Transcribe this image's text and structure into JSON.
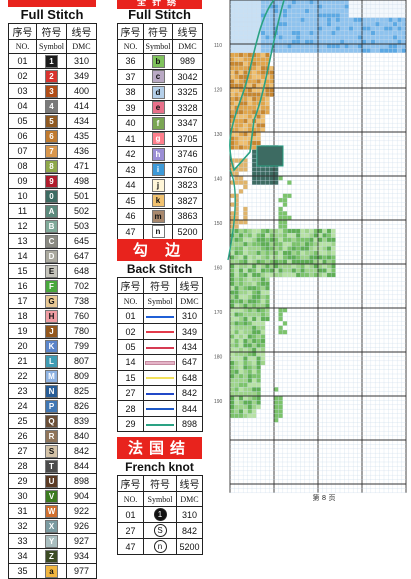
{
  "full_stitch_a": {
    "title": "Full Stitch",
    "head_zh": [
      "序号",
      "符号",
      "线号"
    ],
    "head_en": [
      "NO.",
      "Symbol",
      "DMC"
    ],
    "rows": [
      {
        "no": "01",
        "sym": "1",
        "dmc": "310",
        "color": "#1b1b1b",
        "fg": "#ffffff"
      },
      {
        "no": "02",
        "sym": "2",
        "dmc": "349",
        "color": "#d8322e",
        "fg": "#ffffff"
      },
      {
        "no": "03",
        "sym": "3",
        "dmc": "400",
        "color": "#b14d17",
        "fg": "#ffffff"
      },
      {
        "no": "04",
        "sym": "4",
        "dmc": "414",
        "color": "#7a7a7a",
        "fg": "#ffffff"
      },
      {
        "no": "05",
        "sym": "5",
        "dmc": "434",
        "color": "#8f5a22",
        "fg": "#ffffff"
      },
      {
        "no": "06",
        "sym": "6",
        "dmc": "435",
        "color": "#c07a2e",
        "fg": "#ffffff"
      },
      {
        "no": "07",
        "sym": "7",
        "dmc": "436",
        "color": "#d9974d",
        "fg": "#ffffff"
      },
      {
        "no": "08",
        "sym": "8",
        "dmc": "471",
        "color": "#8ea84a",
        "fg": "#ffffff"
      },
      {
        "no": "09",
        "sym": "9",
        "dmc": "498",
        "color": "#b01c2c",
        "fg": "#ffffff"
      },
      {
        "no": "10",
        "sym": "0",
        "dmc": "501",
        "color": "#3d6b62",
        "fg": "#ffffff"
      },
      {
        "no": "11",
        "sym": "A",
        "dmc": "502",
        "color": "#5b8a7c",
        "fg": "#ffffff"
      },
      {
        "no": "12",
        "sym": "B",
        "dmc": "503",
        "color": "#7fa999",
        "fg": "#ffffff"
      },
      {
        "no": "13",
        "sym": "C",
        "dmc": "645",
        "color": "#8a8a82",
        "fg": "#ffffff"
      },
      {
        "no": "14",
        "sym": "D",
        "dmc": "647",
        "color": "#aaa99e",
        "fg": "#ffffff"
      },
      {
        "no": "15",
        "sym": "E",
        "dmc": "648",
        "color": "#c5c4bb",
        "fg": "#111111"
      },
      {
        "no": "16",
        "sym": "F",
        "dmc": "702",
        "color": "#48a83c",
        "fg": "#ffffff"
      },
      {
        "no": "17",
        "sym": "G",
        "dmc": "738",
        "color": "#e9c995",
        "fg": "#111111"
      },
      {
        "no": "18",
        "sym": "H",
        "dmc": "760",
        "color": "#ef9ca2",
        "fg": "#111111"
      },
      {
        "no": "19",
        "sym": "J",
        "dmc": "780",
        "color": "#93571c",
        "fg": "#ffffff"
      },
      {
        "no": "20",
        "sym": "K",
        "dmc": "799",
        "color": "#5a84c9",
        "fg": "#ffffff"
      },
      {
        "no": "21",
        "sym": "L",
        "dmc": "807",
        "color": "#3f9cb4",
        "fg": "#ffffff"
      },
      {
        "no": "22",
        "sym": "M",
        "dmc": "809",
        "color": "#8db2e2",
        "fg": "#ffffff"
      },
      {
        "no": "23",
        "sym": "N",
        "dmc": "825",
        "color": "#265c96",
        "fg": "#ffffff"
      },
      {
        "no": "24",
        "sym": "P",
        "dmc": "826",
        "color": "#3f76b3",
        "fg": "#ffffff"
      },
      {
        "no": "25",
        "sym": "Q",
        "dmc": "839",
        "color": "#6a4e36",
        "fg": "#ffffff"
      },
      {
        "no": "26",
        "sym": "R",
        "dmc": "840",
        "color": "#8f7459",
        "fg": "#ffffff"
      },
      {
        "no": "27",
        "sym": "S",
        "dmc": "842",
        "color": "#d4c3a8",
        "fg": "#111111"
      },
      {
        "no": "28",
        "sym": "T",
        "dmc": "844",
        "color": "#4b4b4b",
        "fg": "#ffffff"
      },
      {
        "no": "29",
        "sym": "U",
        "dmc": "898",
        "color": "#5b3b24",
        "fg": "#ffffff"
      },
      {
        "no": "30",
        "sym": "V",
        "dmc": "904",
        "color": "#3b7a1f",
        "fg": "#ffffff"
      },
      {
        "no": "31",
        "sym": "W",
        "dmc": "922",
        "color": "#d06f2e",
        "fg": "#ffffff"
      },
      {
        "no": "32",
        "sym": "X",
        "dmc": "926",
        "color": "#7a9aa0",
        "fg": "#ffffff"
      },
      {
        "no": "33",
        "sym": "Y",
        "dmc": "927",
        "color": "#a9bebf",
        "fg": "#ffffff"
      },
      {
        "no": "34",
        "sym": "Z",
        "dmc": "934",
        "color": "#3b4a23",
        "fg": "#ffffff"
      },
      {
        "no": "35",
        "sym": "a",
        "dmc": "977",
        "color": "#f2b640",
        "fg": "#111111"
      }
    ]
  },
  "full_stitch_b": {
    "header": "全针绣",
    "title": "Full Stitch",
    "head_zh": [
      "序号",
      "符号",
      "线号"
    ],
    "head_en": [
      "NO.",
      "Symbol",
      "DMC"
    ],
    "rows": [
      {
        "no": "36",
        "sym": "b",
        "dmc": "989",
        "color": "#7fc35c",
        "fg": "#111111"
      },
      {
        "no": "37",
        "sym": "c",
        "dmc": "3042",
        "color": "#b9a9c4",
        "fg": "#111111"
      },
      {
        "no": "38",
        "sym": "d",
        "dmc": "3325",
        "color": "#b4cfe9",
        "fg": "#111111"
      },
      {
        "no": "39",
        "sym": "e",
        "dmc": "3328",
        "color": "#e9708a",
        "fg": "#111111"
      },
      {
        "no": "40",
        "sym": "f",
        "dmc": "3347",
        "color": "#7aa653",
        "fg": "#ffffff"
      },
      {
        "no": "41",
        "sym": "g",
        "dmc": "3705",
        "color": "#ff7f8c",
        "fg": "#ffffff"
      },
      {
        "no": "42",
        "sym": "h",
        "dmc": "3746",
        "color": "#9b8ed6",
        "fg": "#ffffff"
      },
      {
        "no": "43",
        "sym": "i",
        "dmc": "3760",
        "color": "#3d9ad8",
        "fg": "#ffffff"
      },
      {
        "no": "44",
        "sym": "j",
        "dmc": "3823",
        "color": "#fff6d8",
        "fg": "#111111"
      },
      {
        "no": "45",
        "sym": "k",
        "dmc": "3827",
        "color": "#f1c26f",
        "fg": "#111111"
      },
      {
        "no": "46",
        "sym": "m",
        "dmc": "3863",
        "color": "#a8886d",
        "fg": "#111111"
      },
      {
        "no": "47",
        "sym": "n",
        "dmc": "5200",
        "color": "#ffffff",
        "fg": "#111111"
      }
    ]
  },
  "back_stitch": {
    "header": "勾 边",
    "title": "Back Stitch",
    "head_zh": [
      "序号",
      "符号",
      "线号"
    ],
    "head_en": [
      "NO.",
      "Symbol",
      "DMC"
    ],
    "rows": [
      {
        "no": "01",
        "dmc": "310",
        "color": "#1f5fd6"
      },
      {
        "no": "02",
        "dmc": "349",
        "color": "#e23a4a"
      },
      {
        "no": "05",
        "dmc": "434",
        "color": "#d63a52"
      },
      {
        "no": "14",
        "dmc": "647",
        "color": "#e5b4c8"
      },
      {
        "no": "15",
        "dmc": "648",
        "color": "#f2e05a"
      },
      {
        "no": "27",
        "dmc": "842",
        "color": "#2148c7"
      },
      {
        "no": "28",
        "dmc": "844",
        "color": "#1d58c6"
      },
      {
        "no": "29",
        "dmc": "898",
        "color": "#2aa283"
      }
    ]
  },
  "french_knot": {
    "header": "法国结",
    "title": "French knot",
    "head_zh": [
      "序号",
      "符号",
      "线号"
    ],
    "head_en": [
      "NO.",
      "Symbol",
      "DMC"
    ],
    "rows": [
      {
        "no": "01",
        "sym": "1",
        "dmc": "310",
        "filled": true
      },
      {
        "no": "27",
        "sym": "S",
        "dmc": "842",
        "filled": false
      },
      {
        "no": "47",
        "sym": "n",
        "dmc": "5200",
        "filled": false
      }
    ]
  },
  "chart": {
    "row_labels": [
      "110",
      "120",
      "130",
      "140",
      "150",
      "160",
      "170",
      "180",
      "190"
    ],
    "page_label": "第 8 页"
  }
}
